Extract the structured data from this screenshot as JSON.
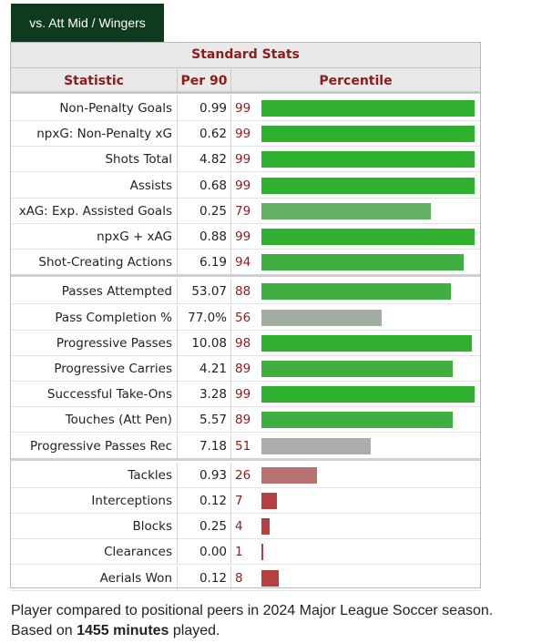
{
  "tab_label": "vs. Att Mid / Wingers",
  "table": {
    "group_header": "Standard Stats",
    "columns": {
      "statistic": "Statistic",
      "per90": "Per 90",
      "percentile": "Percentile"
    }
  },
  "colors": {
    "high": "#2fb02f",
    "mid_high": "#62b062",
    "neutral": "#a3aea3",
    "neutral_gray": "#acacac",
    "low_mid": "#b87272",
    "low": "#b83f3f"
  },
  "chart_data": {
    "type": "bar",
    "orientation": "horizontal",
    "xlim": [
      0,
      100
    ],
    "groups": [
      [
        {
          "statistic": "Non-Penalty Goals",
          "per90": "0.99",
          "percentile": 99,
          "color": "#2fb02f"
        },
        {
          "statistic": "npxG: Non-Penalty xG",
          "per90": "0.62",
          "percentile": 99,
          "color": "#2fb02f"
        },
        {
          "statistic": "Shots Total",
          "per90": "4.82",
          "percentile": 99,
          "color": "#2fb02f"
        },
        {
          "statistic": "Assists",
          "per90": "0.68",
          "percentile": 99,
          "color": "#2fb02f"
        },
        {
          "statistic": "xAG: Exp. Assisted Goals",
          "per90": "0.25",
          "percentile": 79,
          "color": "#62b062"
        },
        {
          "statistic": "npxG + xAG",
          "per90": "0.88",
          "percentile": 99,
          "color": "#2fb02f"
        },
        {
          "statistic": "Shot-Creating Actions",
          "per90": "6.19",
          "percentile": 94,
          "color": "#3fb03f"
        }
      ],
      [
        {
          "statistic": "Passes Attempted",
          "per90": "53.07",
          "percentile": 88,
          "color": "#3fb03f"
        },
        {
          "statistic": "Pass Completion %",
          "per90": "77.0%",
          "percentile": 56,
          "color": "#a3aea3"
        },
        {
          "statistic": "Progressive Passes",
          "per90": "10.08",
          "percentile": 98,
          "color": "#2fb02f"
        },
        {
          "statistic": "Progressive Carries",
          "per90": "4.21",
          "percentile": 89,
          "color": "#3fb03f"
        },
        {
          "statistic": "Successful Take-Ons",
          "per90": "3.28",
          "percentile": 99,
          "color": "#2fb02f"
        },
        {
          "statistic": "Touches (Att Pen)",
          "per90": "5.57",
          "percentile": 89,
          "color": "#3fb03f"
        },
        {
          "statistic": "Progressive Passes Rec",
          "per90": "7.18",
          "percentile": 51,
          "color": "#acacac"
        }
      ],
      [
        {
          "statistic": "Tackles",
          "per90": "0.93",
          "percentile": 26,
          "color": "#b87272"
        },
        {
          "statistic": "Interceptions",
          "per90": "0.12",
          "percentile": 7,
          "color": "#b83f3f"
        },
        {
          "statistic": "Blocks",
          "per90": "0.25",
          "percentile": 4,
          "color": "#b83f3f"
        },
        {
          "statistic": "Clearances",
          "per90": "0.00",
          "percentile": 1,
          "color": "#b83f3f"
        },
        {
          "statistic": "Aerials Won",
          "per90": "0.12",
          "percentile": 8,
          "color": "#b83f3f"
        }
      ]
    ]
  },
  "footer": {
    "line1": "Player compared to positional peers in 2024 Major League Soccer season.",
    "line2_prefix": "Based on ",
    "line2_bold": "1455 minutes",
    "line2_suffix": " played."
  }
}
